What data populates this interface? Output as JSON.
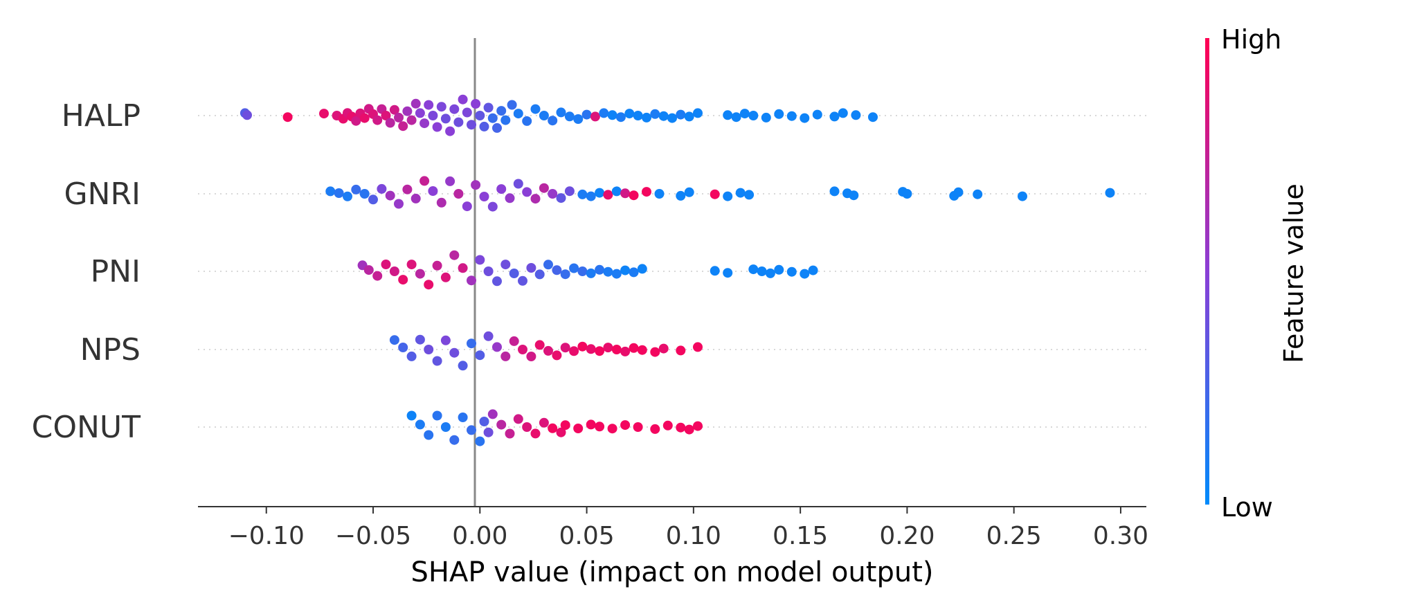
{
  "chart_data": {
    "type": "scatter",
    "subtype": "shap-beeswarm",
    "title": "",
    "xlabel": "SHAP value (impact on model output)",
    "xlim": [
      -0.132,
      0.312
    ],
    "x_ticks": [
      -0.1,
      -0.05,
      0.0,
      0.05,
      0.1,
      0.15,
      0.2,
      0.25,
      0.3
    ],
    "x_tick_labels": [
      "−0.10",
      "−0.05",
      "0.00",
      "0.05",
      "0.10",
      "0.15",
      "0.20",
      "0.25",
      "0.30"
    ],
    "features": [
      "HALP",
      "GNRI",
      "PNI",
      "NPS",
      "CONUT"
    ],
    "colorbar": {
      "label": "Feature value",
      "high_label": "High",
      "low_label": "Low",
      "high_color": "#ff0052",
      "low_color": "#008bfb"
    },
    "gridlines": "dotted horizontal per feature",
    "series": [
      {
        "feature": "HALP",
        "points": [
          [
            -0.11,
            0.3
          ],
          [
            -0.109,
            0.4
          ],
          [
            -0.09,
            0.95
          ],
          [
            -0.073,
            0.9
          ],
          [
            -0.067,
            0.85
          ],
          [
            -0.064,
            0.9
          ],
          [
            -0.062,
            0.85
          ],
          [
            -0.06,
            0.9
          ],
          [
            -0.058,
            0.8
          ],
          [
            -0.056,
            0.85
          ],
          [
            -0.054,
            0.9
          ],
          [
            -0.052,
            0.8
          ],
          [
            -0.05,
            0.85
          ],
          [
            -0.048,
            0.8
          ],
          [
            -0.046,
            0.75
          ],
          [
            -0.044,
            0.85
          ],
          [
            -0.042,
            0.7
          ],
          [
            -0.04,
            0.8
          ],
          [
            -0.038,
            0.7
          ],
          [
            -0.036,
            0.75
          ],
          [
            -0.034,
            0.6
          ],
          [
            -0.032,
            0.7
          ],
          [
            -0.03,
            0.6
          ],
          [
            -0.028,
            0.5
          ],
          [
            -0.026,
            0.55
          ],
          [
            -0.024,
            0.5
          ],
          [
            -0.022,
            0.45
          ],
          [
            -0.02,
            0.5
          ],
          [
            -0.018,
            0.45
          ],
          [
            -0.016,
            0.4
          ],
          [
            -0.014,
            0.5
          ],
          [
            -0.012,
            0.45
          ],
          [
            -0.01,
            0.4
          ],
          [
            -0.008,
            0.5
          ],
          [
            -0.006,
            0.45
          ],
          [
            -0.004,
            0.4
          ],
          [
            -0.002,
            0.5
          ],
          [
            0.0,
            0.35
          ],
          [
            0.002,
            0.3
          ],
          [
            0.004,
            0.35
          ],
          [
            0.006,
            0.2
          ],
          [
            0.008,
            0.25
          ],
          [
            0.01,
            0.2
          ],
          [
            0.012,
            0.15
          ],
          [
            0.015,
            0.2
          ],
          [
            0.018,
            0.1
          ],
          [
            0.022,
            0.15
          ],
          [
            0.026,
            0.1
          ],
          [
            0.03,
            0.1
          ],
          [
            0.034,
            0.15
          ],
          [
            0.038,
            0.1
          ],
          [
            0.042,
            0.1
          ],
          [
            0.046,
            0.1
          ],
          [
            0.05,
            0.15
          ],
          [
            0.054,
            0.85
          ],
          [
            0.058,
            0.1
          ],
          [
            0.062,
            0.05
          ],
          [
            0.066,
            0.1
          ],
          [
            0.07,
            0.05
          ],
          [
            0.074,
            0.05
          ],
          [
            0.078,
            0.05
          ],
          [
            0.082,
            0.1
          ],
          [
            0.086,
            0.05
          ],
          [
            0.09,
            0.05
          ],
          [
            0.094,
            0.1
          ],
          [
            0.098,
            0.05
          ],
          [
            0.102,
            0.05
          ],
          [
            0.116,
            0.05
          ],
          [
            0.12,
            0.05
          ],
          [
            0.124,
            0.05
          ],
          [
            0.128,
            0.05
          ],
          [
            0.134,
            0.05
          ],
          [
            0.14,
            0.05
          ],
          [
            0.146,
            0.05
          ],
          [
            0.152,
            0.05
          ],
          [
            0.158,
            0.05
          ],
          [
            0.166,
            0.05
          ],
          [
            0.17,
            0.05
          ],
          [
            0.176,
            0.05
          ],
          [
            0.184,
            0.05
          ]
        ]
      },
      {
        "feature": "GNRI",
        "points": [
          [
            -0.07,
            0.1
          ],
          [
            -0.066,
            0.15
          ],
          [
            -0.062,
            0.1
          ],
          [
            -0.058,
            0.2
          ],
          [
            -0.054,
            0.15
          ],
          [
            -0.05,
            0.3
          ],
          [
            -0.046,
            0.45
          ],
          [
            -0.042,
            0.6
          ],
          [
            -0.038,
            0.55
          ],
          [
            -0.034,
            0.7
          ],
          [
            -0.03,
            0.6
          ],
          [
            -0.026,
            0.75
          ],
          [
            -0.022,
            0.5
          ],
          [
            -0.018,
            0.65
          ],
          [
            -0.014,
            0.55
          ],
          [
            -0.01,
            0.7
          ],
          [
            -0.006,
            0.5
          ],
          [
            -0.002,
            0.6
          ],
          [
            0.002,
            0.5
          ],
          [
            0.006,
            0.45
          ],
          [
            0.01,
            0.5
          ],
          [
            0.014,
            0.55
          ],
          [
            0.018,
            0.4
          ],
          [
            0.022,
            0.5
          ],
          [
            0.026,
            0.65
          ],
          [
            0.03,
            0.7
          ],
          [
            0.034,
            0.55
          ],
          [
            0.038,
            0.35
          ],
          [
            0.042,
            0.4
          ],
          [
            0.048,
            0.1
          ],
          [
            0.052,
            0.1
          ],
          [
            0.056,
            0.05
          ],
          [
            0.06,
            0.9
          ],
          [
            0.064,
            0.05
          ],
          [
            0.068,
            0.8
          ],
          [
            0.072,
            0.95
          ],
          [
            0.078,
            0.95
          ],
          [
            0.084,
            0.05
          ],
          [
            0.094,
            0.05
          ],
          [
            0.098,
            0.05
          ],
          [
            0.11,
            0.95
          ],
          [
            0.116,
            0.05
          ],
          [
            0.122,
            0.05
          ],
          [
            0.126,
            0.05
          ],
          [
            0.166,
            0.05
          ],
          [
            0.172,
            0.05
          ],
          [
            0.175,
            0.05
          ],
          [
            0.198,
            0.05
          ],
          [
            0.2,
            0.05
          ],
          [
            0.222,
            0.05
          ],
          [
            0.224,
            0.05
          ],
          [
            0.233,
            0.05
          ],
          [
            0.254,
            0.05
          ],
          [
            0.295,
            0.05
          ]
        ]
      },
      {
        "feature": "PNI",
        "points": [
          [
            -0.055,
            0.6
          ],
          [
            -0.052,
            0.7
          ],
          [
            -0.048,
            0.75
          ],
          [
            -0.044,
            0.85
          ],
          [
            -0.04,
            0.8
          ],
          [
            -0.036,
            0.9
          ],
          [
            -0.032,
            0.85
          ],
          [
            -0.028,
            0.7
          ],
          [
            -0.024,
            0.9
          ],
          [
            -0.02,
            0.75
          ],
          [
            -0.016,
            0.85
          ],
          [
            -0.012,
            0.7
          ],
          [
            -0.008,
            0.8
          ],
          [
            -0.004,
            0.6
          ],
          [
            0.0,
            0.45
          ],
          [
            0.004,
            0.4
          ],
          [
            0.008,
            0.35
          ],
          [
            0.012,
            0.4
          ],
          [
            0.016,
            0.3
          ],
          [
            0.02,
            0.35
          ],
          [
            0.024,
            0.4
          ],
          [
            0.028,
            0.3
          ],
          [
            0.032,
            0.2
          ],
          [
            0.036,
            0.25
          ],
          [
            0.04,
            0.2
          ],
          [
            0.044,
            0.15
          ],
          [
            0.048,
            0.2
          ],
          [
            0.052,
            0.1
          ],
          [
            0.056,
            0.15
          ],
          [
            0.06,
            0.1
          ],
          [
            0.064,
            0.1
          ],
          [
            0.068,
            0.05
          ],
          [
            0.072,
            0.1
          ],
          [
            0.076,
            0.05
          ],
          [
            0.11,
            0.05
          ],
          [
            0.116,
            0.05
          ],
          [
            0.128,
            0.05
          ],
          [
            0.132,
            0.05
          ],
          [
            0.136,
            0.05
          ],
          [
            0.14,
            0.05
          ],
          [
            0.146,
            0.05
          ],
          [
            0.152,
            0.05
          ],
          [
            0.156,
            0.05
          ]
        ]
      },
      {
        "feature": "NPS",
        "points": [
          [
            -0.04,
            0.2
          ],
          [
            -0.036,
            0.25
          ],
          [
            -0.032,
            0.3
          ],
          [
            -0.028,
            0.35
          ],
          [
            -0.024,
            0.4
          ],
          [
            -0.02,
            0.35
          ],
          [
            -0.016,
            0.45
          ],
          [
            -0.012,
            0.4
          ],
          [
            -0.008,
            0.3
          ],
          [
            -0.004,
            0.2
          ],
          [
            0.0,
            0.3
          ],
          [
            0.004,
            0.4
          ],
          [
            0.008,
            0.55
          ],
          [
            0.012,
            0.7
          ],
          [
            0.016,
            0.75
          ],
          [
            0.02,
            0.85
          ],
          [
            0.024,
            0.8
          ],
          [
            0.028,
            0.9
          ],
          [
            0.032,
            0.85
          ],
          [
            0.036,
            0.9
          ],
          [
            0.04,
            0.85
          ],
          [
            0.044,
            0.9
          ],
          [
            0.048,
            0.95
          ],
          [
            0.052,
            0.9
          ],
          [
            0.056,
            0.95
          ],
          [
            0.06,
            0.9
          ],
          [
            0.064,
            0.95
          ],
          [
            0.068,
            0.9
          ],
          [
            0.072,
            0.95
          ],
          [
            0.076,
            0.95
          ],
          [
            0.082,
            0.95
          ],
          [
            0.086,
            0.9
          ],
          [
            0.094,
            0.95
          ],
          [
            0.102,
            0.95
          ]
        ]
      },
      {
        "feature": "CONUT",
        "points": [
          [
            -0.032,
            0.05
          ],
          [
            -0.028,
            0.1
          ],
          [
            -0.024,
            0.15
          ],
          [
            -0.02,
            0.15
          ],
          [
            -0.016,
            0.1
          ],
          [
            -0.012,
            0.2
          ],
          [
            -0.008,
            0.15
          ],
          [
            -0.004,
            0.2
          ],
          [
            0.0,
            0.15
          ],
          [
            0.002,
            0.3
          ],
          [
            0.004,
            0.4
          ],
          [
            0.006,
            0.6
          ],
          [
            0.01,
            0.7
          ],
          [
            0.014,
            0.75
          ],
          [
            0.018,
            0.8
          ],
          [
            0.022,
            0.85
          ],
          [
            0.026,
            0.9
          ],
          [
            0.03,
            0.85
          ],
          [
            0.034,
            0.95
          ],
          [
            0.038,
            0.9
          ],
          [
            0.04,
            0.95
          ],
          [
            0.046,
            0.95
          ],
          [
            0.052,
            0.95
          ],
          [
            0.056,
            0.95
          ],
          [
            0.062,
            0.95
          ],
          [
            0.068,
            0.95
          ],
          [
            0.074,
            0.95
          ],
          [
            0.082,
            0.95
          ],
          [
            0.088,
            0.95
          ],
          [
            0.094,
            0.95
          ],
          [
            0.098,
            0.95
          ],
          [
            0.102,
            0.95
          ]
        ]
      }
    ]
  }
}
